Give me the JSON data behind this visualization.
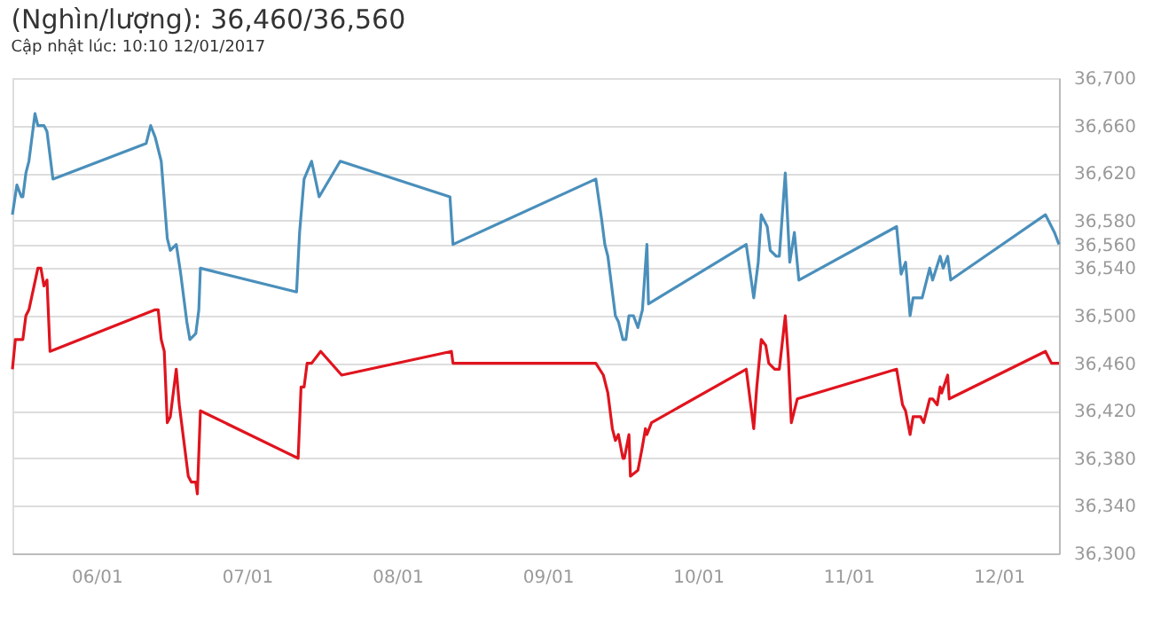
{
  "chart_data": {
    "type": "line",
    "title": "(Nghìn/lượng): 36,460/36,560",
    "subtitle": "Cập nhật lúc: 10:10 12/01/2017",
    "series": [
      {
        "color": "#4a8fbb",
        "x": [
          "2017-01-05T10:34",
          "2017-01-05T11:17",
          "2017-01-05T12:00",
          "2017-01-05T12:14",
          "2017-01-05T12:43",
          "2017-01-05T13:12",
          "2017-01-05T14:10",
          "2017-01-05T14:38",
          "2017-01-05T15:36",
          "2017-01-05T16:05",
          "2017-01-05T17:02",
          "2017-01-06T07:55",
          "2017-01-06T08:38",
          "2017-01-06T09:22",
          "2017-01-06T10:19",
          "2017-01-06T11:17",
          "2017-01-06T11:46",
          "2017-01-06T12:43",
          "2017-01-06T13:26",
          "2017-01-06T14:24",
          "2017-01-06T14:53",
          "2017-01-06T15:50",
          "2017-01-06T16:19",
          "2017-01-06T16:34",
          "2017-01-07T07:55",
          "2017-01-07T08:24",
          "2017-01-07T09:07",
          "2017-01-07T10:19",
          "2017-01-07T11:31",
          "2017-01-07T14:53",
          "2017-01-08T08:24",
          "2017-01-08T08:53",
          "2017-01-09T07:41",
          "2017-01-09T08:38",
          "2017-01-09T09:07",
          "2017-01-09T09:36",
          "2017-01-09T10:48",
          "2017-01-09T11:17",
          "2017-01-09T12:00",
          "2017-01-09T12:29",
          "2017-01-09T12:58",
          "2017-01-09T13:41",
          "2017-01-09T14:24",
          "2017-01-09T15:07",
          "2017-01-09T15:50",
          "2017-01-09T16:05",
          "2017-01-10T07:41",
          "2017-01-10T08:53",
          "2017-01-10T09:36",
          "2017-01-10T10:05",
          "2017-01-10T11:02",
          "2017-01-10T11:31",
          "2017-01-10T12:29",
          "2017-01-10T12:58",
          "2017-01-10T13:55",
          "2017-01-10T14:38",
          "2017-01-10T15:22",
          "2017-01-10T16:05",
          "2017-01-11T07:41",
          "2017-01-11T08:24",
          "2017-01-11T09:07",
          "2017-01-11T09:50",
          "2017-01-11T10:19",
          "2017-01-11T11:46",
          "2017-01-11T12:58",
          "2017-01-11T13:26",
          "2017-01-11T14:38",
          "2017-01-11T15:07",
          "2017-01-11T15:50",
          "2017-01-11T16:19",
          "2017-01-12T07:26",
          "2017-01-12T08:24",
          "2017-01-12T08:53",
          "2017-01-12T09:36"
        ],
        "values": [
          36585,
          36610,
          36600,
          36600,
          36620,
          36630,
          36670,
          36660,
          36660,
          36655,
          36615,
          36645,
          36660,
          36650,
          36630,
          36565,
          36555,
          36560,
          36535,
          36495,
          36480,
          36485,
          36505,
          36540,
          36520,
          36570,
          36615,
          36630,
          36600,
          36630,
          36600,
          36560,
          36615,
          36580,
          36560,
          36550,
          36500,
          36495,
          36480,
          36480,
          36500,
          36500,
          36490,
          36505,
          36560,
          36510,
          36560,
          36515,
          36545,
          36585,
          36575,
          36555,
          36550,
          36550,
          36620,
          36545,
          36570,
          36530,
          36575,
          36535,
          36545,
          36500,
          36515,
          36515,
          36540,
          36530,
          36550,
          36540,
          36550,
          36530,
          36585,
          36575,
          36570,
          36560
        ]
      },
      {
        "color": "#e0141e",
        "x": [
          "2017-01-05T10:34",
          "2017-01-05T11:02",
          "2017-01-05T11:31",
          "2017-01-05T12:14",
          "2017-01-05T12:43",
          "2017-01-05T13:12",
          "2017-01-05T14:38",
          "2017-01-05T15:07",
          "2017-01-05T15:36",
          "2017-01-05T16:05",
          "2017-01-05T16:34",
          "2017-01-06T09:22",
          "2017-01-06T09:50",
          "2017-01-06T10:19",
          "2017-01-06T10:48",
          "2017-01-06T11:17",
          "2017-01-06T11:46",
          "2017-01-06T12:43",
          "2017-01-06T13:12",
          "2017-01-06T13:55",
          "2017-01-06T14:38",
          "2017-01-06T15:07",
          "2017-01-06T15:50",
          "2017-01-06T16:05",
          "2017-01-06T16:34",
          "2017-01-07T08:10",
          "2017-01-07T08:38",
          "2017-01-07T09:07",
          "2017-01-07T09:36",
          "2017-01-07T10:19",
          "2017-01-07T11:46",
          "2017-01-07T15:07",
          "2017-01-08T08:38",
          "2017-01-08T08:53",
          "2017-01-09T07:41",
          "2017-01-09T08:53",
          "2017-01-09T09:36",
          "2017-01-09T10:19",
          "2017-01-09T10:48",
          "2017-01-09T11:17",
          "2017-01-09T12:00",
          "2017-01-09T12:14",
          "2017-01-09T12:58",
          "2017-01-09T13:12",
          "2017-01-09T14:24",
          "2017-01-09T15:07",
          "2017-01-09T15:36",
          "2017-01-09T15:50",
          "2017-01-09T16:34",
          "2017-01-10T07:41",
          "2017-01-10T08:53",
          "2017-01-10T09:22",
          "2017-01-10T10:05",
          "2017-01-10T10:48",
          "2017-01-10T11:17",
          "2017-01-10T12:14",
          "2017-01-10T12:58",
          "2017-01-10T13:55",
          "2017-01-10T14:24",
          "2017-01-10T14:53",
          "2017-01-10T15:50",
          "2017-01-11T07:41",
          "2017-01-11T08:38",
          "2017-01-11T09:07",
          "2017-01-11T09:50",
          "2017-01-11T10:19",
          "2017-01-11T11:31",
          "2017-01-11T12:00",
          "2017-01-11T12:58",
          "2017-01-11T13:26",
          "2017-01-11T14:10",
          "2017-01-11T14:38",
          "2017-01-11T14:53",
          "2017-01-11T15:50",
          "2017-01-11T16:05",
          "2017-01-12T07:26",
          "2017-01-12T08:24",
          "2017-01-12T09:36"
        ],
        "values": [
          36455,
          36480,
          36480,
          36480,
          36500,
          36505,
          36540,
          36540,
          36525,
          36530,
          36470,
          36505,
          36505,
          36480,
          36470,
          36410,
          36415,
          36455,
          36425,
          36395,
          36365,
          36360,
          36360,
          36350,
          36420,
          36380,
          36440,
          36440,
          36460,
          36460,
          36470,
          36450,
          36470,
          36460,
          36460,
          36450,
          36435,
          36405,
          36395,
          36400,
          36380,
          36380,
          36400,
          36365,
          36370,
          36390,
          36405,
          36400,
          36410,
          36455,
          36405,
          36440,
          36480,
          36475,
          36460,
          36455,
          36455,
          36500,
          36465,
          36410,
          36430,
          36455,
          36425,
          36420,
          36400,
          36415,
          36415,
          36410,
          36430,
          36430,
          36425,
          36440,
          36435,
          36450,
          36430,
          36470,
          36460,
          36460
        ]
      }
    ],
    "xlim": [
      "2017-01-05T10:34",
      "2017-01-12T09:36"
    ],
    "xticks": [
      {
        "value": "2017-01-06",
        "label": "06/01"
      },
      {
        "value": "2017-01-07",
        "label": "07/01"
      },
      {
        "value": "2017-01-08",
        "label": "08/01"
      },
      {
        "value": "2017-01-09",
        "label": "09/01"
      },
      {
        "value": "2017-01-10",
        "label": "10/01"
      },
      {
        "value": "2017-01-11",
        "label": "11/01"
      },
      {
        "value": "2017-01-12",
        "label": "12/01"
      }
    ],
    "ylim": [
      36300,
      36700
    ],
    "yticks": [
      {
        "value": 36300,
        "label": "36,300"
      },
      {
        "value": 36340,
        "label": "36,340"
      },
      {
        "value": 36380,
        "label": "36,380"
      },
      {
        "value": 36420,
        "label": "36,420"
      },
      {
        "value": 36460,
        "label": "36,460"
      },
      {
        "value": 36500,
        "label": "36,500"
      },
      {
        "value": 36540,
        "label": "36,540"
      },
      {
        "value": 36560,
        "label": "36,560"
      },
      {
        "value": 36580,
        "label": "36,580"
      },
      {
        "value": 36620,
        "label": "36,620"
      },
      {
        "value": 36660,
        "label": "36,660"
      },
      {
        "value": 36700,
        "label": "36,700"
      }
    ],
    "grid": "y",
    "legend": false,
    "marker": "none",
    "line_style": "solid"
  }
}
